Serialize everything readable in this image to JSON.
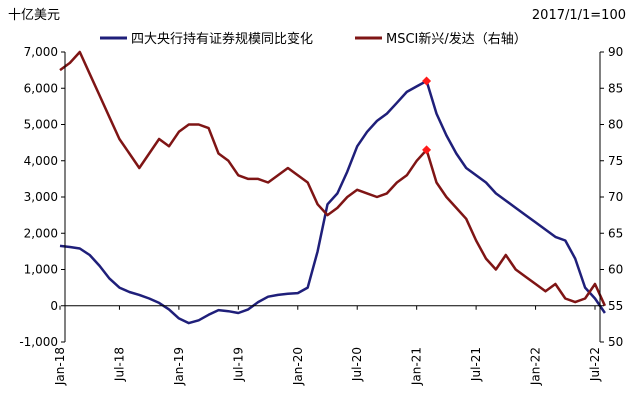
{
  "chart_data": {
    "type": "line",
    "left_unit_label": "十亿美元",
    "right_note": "2017/1/1=100",
    "y_left": {
      "min": -1000,
      "max": 7000,
      "ticks": [
        "7,000",
        "6,000",
        "5,000",
        "4,000",
        "3,000",
        "2,000",
        "1,000",
        "0",
        "-1,000"
      ],
      "tick_values": [
        7000,
        6000,
        5000,
        4000,
        3000,
        2000,
        1000,
        0,
        -1000
      ]
    },
    "y_right": {
      "min": 50,
      "max": 90,
      "ticks": [
        "90",
        "85",
        "80",
        "75",
        "70",
        "65",
        "60",
        "55",
        "50"
      ],
      "tick_values": [
        90,
        85,
        80,
        75,
        70,
        65,
        60,
        55,
        50
      ]
    },
    "x_ticks": [
      "Jan-18",
      "Jul-18",
      "Jan-19",
      "Jul-19",
      "Jan-20",
      "Jul-20",
      "Jan-21",
      "Jul-21",
      "Jan-22",
      "Jul-22"
    ],
    "x_tick_dates": [
      "2018-01",
      "2018-07",
      "2019-01",
      "2019-07",
      "2020-01",
      "2020-07",
      "2021-01",
      "2021-07",
      "2022-01",
      "2022-07"
    ],
    "grid": false,
    "legend_position": "top",
    "series": [
      {
        "name": "四大央行持有证券规模同比变化",
        "color": "#1f1f7a",
        "axis": "left",
        "points": [
          [
            "2018-01",
            1650
          ],
          [
            "2018-02",
            1620
          ],
          [
            "2018-03",
            1580
          ],
          [
            "2018-04",
            1400
          ],
          [
            "2018-05",
            1100
          ],
          [
            "2018-06",
            750
          ],
          [
            "2018-07",
            500
          ],
          [
            "2018-08",
            380
          ],
          [
            "2018-09",
            300
          ],
          [
            "2018-10",
            200
          ],
          [
            "2018-11",
            80
          ],
          [
            "2018-12",
            -100
          ],
          [
            "2019-01",
            -350
          ],
          [
            "2019-02",
            -480
          ],
          [
            "2019-03",
            -400
          ],
          [
            "2019-04",
            -250
          ],
          [
            "2019-05",
            -120
          ],
          [
            "2019-06",
            -150
          ],
          [
            "2019-07",
            -200
          ],
          [
            "2019-08",
            -100
          ],
          [
            "2019-09",
            100
          ],
          [
            "2019-10",
            250
          ],
          [
            "2019-11",
            300
          ],
          [
            "2019-12",
            330
          ],
          [
            "2020-01",
            350
          ],
          [
            "2020-02",
            500
          ],
          [
            "2020-03",
            1500
          ],
          [
            "2020-04",
            2800
          ],
          [
            "2020-05",
            3100
          ],
          [
            "2020-06",
            3700
          ],
          [
            "2020-07",
            4400
          ],
          [
            "2020-08",
            4800
          ],
          [
            "2020-09",
            5100
          ],
          [
            "2020-10",
            5300
          ],
          [
            "2020-11",
            5600
          ],
          [
            "2020-12",
            5900
          ],
          [
            "2021-01",
            6050
          ],
          [
            "2021-02",
            6200
          ],
          [
            "2021-03",
            5300
          ],
          [
            "2021-04",
            4700
          ],
          [
            "2021-05",
            4200
          ],
          [
            "2021-06",
            3800
          ],
          [
            "2021-07",
            3600
          ],
          [
            "2021-08",
            3400
          ],
          [
            "2021-09",
            3100
          ],
          [
            "2021-10",
            2900
          ],
          [
            "2021-11",
            2700
          ],
          [
            "2021-12",
            2500
          ],
          [
            "2022-01",
            2300
          ],
          [
            "2022-02",
            2100
          ],
          [
            "2022-03",
            1900
          ],
          [
            "2022-04",
            1800
          ],
          [
            "2022-05",
            1300
          ],
          [
            "2022-06",
            500
          ],
          [
            "2022-07",
            200
          ],
          [
            "2022-08",
            -200
          ]
        ]
      },
      {
        "name": "MSCI新兴/发达（右轴）",
        "color": "#7f1515",
        "axis": "right",
        "points": [
          [
            "2018-01",
            87.5
          ],
          [
            "2018-02",
            88.5
          ],
          [
            "2018-03",
            90
          ],
          [
            "2018-04",
            87
          ],
          [
            "2018-05",
            84
          ],
          [
            "2018-06",
            81
          ],
          [
            "2018-07",
            78
          ],
          [
            "2018-08",
            76
          ],
          [
            "2018-09",
            74
          ],
          [
            "2018-10",
            76
          ],
          [
            "2018-11",
            78
          ],
          [
            "2018-12",
            77
          ],
          [
            "2019-01",
            79
          ],
          [
            "2019-02",
            80
          ],
          [
            "2019-03",
            80
          ],
          [
            "2019-04",
            79.5
          ],
          [
            "2019-05",
            76
          ],
          [
            "2019-06",
            75
          ],
          [
            "2019-07",
            73
          ],
          [
            "2019-08",
            72.5
          ],
          [
            "2019-09",
            72.5
          ],
          [
            "2019-10",
            72
          ],
          [
            "2019-11",
            73
          ],
          [
            "2019-12",
            74
          ],
          [
            "2020-01",
            73
          ],
          [
            "2020-02",
            72
          ],
          [
            "2020-03",
            69
          ],
          [
            "2020-04",
            67.5
          ],
          [
            "2020-05",
            68.5
          ],
          [
            "2020-06",
            70
          ],
          [
            "2020-07",
            71
          ],
          [
            "2020-08",
            70.5
          ],
          [
            "2020-09",
            70
          ],
          [
            "2020-10",
            70.5
          ],
          [
            "2020-11",
            72
          ],
          [
            "2020-12",
            73
          ],
          [
            "2021-01",
            75
          ],
          [
            "2021-02",
            76.5
          ],
          [
            "2021-03",
            72
          ],
          [
            "2021-04",
            70
          ],
          [
            "2021-05",
            68.5
          ],
          [
            "2021-06",
            67
          ],
          [
            "2021-07",
            64
          ],
          [
            "2021-08",
            61.5
          ],
          [
            "2021-09",
            60
          ],
          [
            "2021-10",
            62
          ],
          [
            "2021-11",
            60
          ],
          [
            "2021-12",
            59
          ],
          [
            "2022-01",
            58
          ],
          [
            "2022-02",
            57
          ],
          [
            "2022-03",
            58
          ],
          [
            "2022-04",
            56
          ],
          [
            "2022-05",
            55.5
          ],
          [
            "2022-06",
            56
          ],
          [
            "2022-07",
            58
          ],
          [
            "2022-08",
            55
          ]
        ]
      }
    ],
    "markers": [
      {
        "series": 0,
        "date": "2021-02",
        "value": 6200,
        "color": "#ff1a1a"
      },
      {
        "series": 1,
        "date": "2021-02",
        "value": 76.5,
        "color": "#ff1a1a"
      }
    ]
  }
}
